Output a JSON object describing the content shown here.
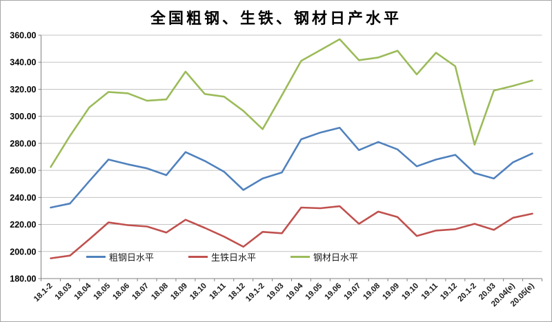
{
  "chart_data": {
    "type": "line",
    "title": "全国粗钢、生铁、钢材日产水平",
    "categories": [
      "18.1-2",
      "18.03",
      "18.04",
      "18.05",
      "18.06",
      "18.07",
      "18.08",
      "18.09",
      "18.10",
      "18.11",
      "18.12",
      "19.1-2",
      "19.03",
      "19.04",
      "19.05",
      "19.06",
      "19.07",
      "19.08",
      "19.09",
      "19.10",
      "19.11",
      "19.12",
      "20.1-2",
      "20.03",
      "20.04(e)",
      "20.05(e)"
    ],
    "series": [
      {
        "id": "crude-steel",
        "name": "粗钢日水平",
        "color": "#4F81BD",
        "values": [
          232.5,
          235.5,
          252,
          268,
          264.5,
          261.5,
          256.5,
          273.5,
          267,
          259,
          245.5,
          254,
          258.5,
          283,
          288,
          291.5,
          275,
          281,
          275.5,
          263,
          268,
          271.5,
          258,
          254,
          266,
          272.5
        ]
      },
      {
        "id": "pig-iron",
        "name": "生铁日水平",
        "color": "#C0504D",
        "values": [
          195,
          197,
          209,
          221.5,
          219.5,
          218.5,
          214,
          223.5,
          217.5,
          211,
          203.5,
          214.5,
          213.5,
          232.5,
          232,
          233.5,
          220.5,
          229.5,
          225.5,
          211.5,
          215.5,
          216.5,
          220.5,
          216,
          225,
          228
        ]
      },
      {
        "id": "steel-products",
        "name": "钢材日水平",
        "color": "#9BBB59",
        "values": [
          262.5,
          285.5,
          306.5,
          318,
          317,
          311.5,
          312.5,
          333,
          316.5,
          314.5,
          304,
          290.5,
          315.5,
          341,
          349,
          357,
          341.5,
          343.5,
          348.5,
          331,
          347,
          337,
          279,
          319,
          322.5,
          326.5
        ]
      }
    ],
    "ylim": [
      180,
      360
    ],
    "ytick_step": 20,
    "ytick_labels": [
      "180.00",
      "200.00",
      "220.00",
      "240.00",
      "260.00",
      "280.00",
      "300.00",
      "320.00",
      "340.00",
      "360.00"
    ],
    "xlabel": "",
    "ylabel": "",
    "grid": true,
    "legend_position": "bottom",
    "axis_color": "#808080",
    "grid_color": "#c3c3c3",
    "label_color": "#1a1a1a",
    "background": "#FFFFFF"
  }
}
